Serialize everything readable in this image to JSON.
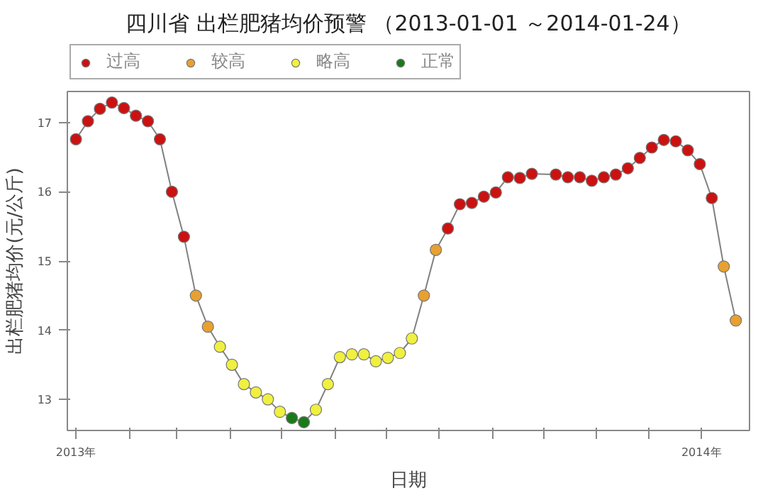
{
  "chart_data": {
    "type": "line",
    "title": "四川省 出栏肥猪均价预警 （2013-01-01 ～2014-01-24）",
    "xlabel": "日期",
    "ylabel": "出栏肥猪均价(元/公斤)",
    "xlim": [
      "2012-12-27",
      "2014-01-29"
    ],
    "ylim": [
      12.55,
      17.45
    ],
    "xticks": [
      {
        "value": "2013-01-01",
        "label": "2013年"
      },
      {
        "value": "2013-02-01",
        "label": null
      },
      {
        "value": "2013-03-01",
        "label": null
      },
      {
        "value": "2013-04-01",
        "label": null
      },
      {
        "value": "2013-05-01",
        "label": null
      },
      {
        "value": "2013-06-01",
        "label": null
      },
      {
        "value": "2013-07-01",
        "label": null
      },
      {
        "value": "2013-08-01",
        "label": null
      },
      {
        "value": "2013-09-01",
        "label": null
      },
      {
        "value": "2013-10-01",
        "label": null
      },
      {
        "value": "2013-11-01",
        "label": null
      },
      {
        "value": "2013-12-01",
        "label": null
      },
      {
        "value": "2014-01-01",
        "label": "2014年"
      }
    ],
    "yticks": [
      13,
      14,
      15,
      16,
      17
    ],
    "grid": false,
    "legend": "top left",
    "marker": "circle",
    "line_style": "solid",
    "series": [
      {
        "color": "#808080",
        "marker": "none",
        "x": [
          "2013-01-01",
          "2013-01-08",
          "2013-01-15",
          "2013-01-22",
          "2013-01-29",
          "2013-02-05",
          "2013-02-12",
          "2013-02-19",
          "2013-02-26",
          "2013-03-05",
          "2013-03-12",
          "2013-03-19",
          "2013-03-26",
          "2013-04-02",
          "2013-04-09",
          "2013-04-16",
          "2013-04-23",
          "2013-04-30",
          "2013-05-07",
          "2013-05-14",
          "2013-05-21",
          "2013-05-28",
          "2013-06-04",
          "2013-06-11",
          "2013-06-18",
          "2013-06-25",
          "2013-07-02",
          "2013-07-09",
          "2013-07-16",
          "2013-07-23",
          "2013-07-30",
          "2013-08-06",
          "2013-08-13",
          "2013-08-20",
          "2013-08-27",
          "2013-09-03",
          "2013-09-10",
          "2013-09-17",
          "2013-09-24",
          "2013-10-08",
          "2013-10-15",
          "2013-10-22",
          "2013-10-29",
          "2013-11-05",
          "2013-11-12",
          "2013-11-19",
          "2013-11-26",
          "2013-12-03",
          "2013-12-10",
          "2013-12-17",
          "2013-12-24",
          "2013-12-31",
          "2014-01-07",
          "2014-01-14",
          "2014-01-21"
        ],
        "values": [
          16.76,
          17.02,
          17.2,
          17.29,
          17.21,
          17.1,
          17.02,
          16.76,
          16.0,
          15.35,
          14.5,
          14.05,
          13.76,
          13.5,
          13.22,
          13.1,
          13.0,
          12.82,
          12.73,
          12.67,
          12.85,
          13.22,
          13.61,
          13.65,
          13.65,
          13.55,
          13.6,
          13.67,
          13.88,
          14.5,
          15.16,
          15.47,
          15.82,
          15.84,
          15.93,
          15.99,
          16.21,
          16.2,
          16.26,
          16.25,
          16.21,
          16.21,
          16.16,
          16.21,
          16.25,
          16.34,
          16.49,
          16.64,
          16.75,
          16.73,
          16.6,
          16.4,
          15.91,
          14.92,
          14.14
        ]
      },
      {
        "type": "scatter",
        "name": "过高",
        "color": "#cc1111",
        "x": [
          "2013-01-01",
          "2013-01-08",
          "2013-01-15",
          "2013-01-22",
          "2013-01-29",
          "2013-02-05",
          "2013-02-12",
          "2013-02-19",
          "2013-02-26",
          "2013-03-05",
          "2013-08-06",
          "2013-08-13",
          "2013-08-20",
          "2013-08-27",
          "2013-09-03",
          "2013-09-10",
          "2013-09-17",
          "2013-09-24",
          "2013-10-08",
          "2013-10-15",
          "2013-10-22",
          "2013-10-29",
          "2013-11-05",
          "2013-11-12",
          "2013-11-19",
          "2013-11-26",
          "2013-12-03",
          "2013-12-10",
          "2013-12-17",
          "2013-12-24",
          "2013-12-31",
          "2014-01-07"
        ],
        "values": [
          16.76,
          17.02,
          17.2,
          17.29,
          17.21,
          17.1,
          17.02,
          16.76,
          16.0,
          15.35,
          15.47,
          15.82,
          15.84,
          15.93,
          15.99,
          16.21,
          16.2,
          16.26,
          16.25,
          16.21,
          16.21,
          16.16,
          16.21,
          16.25,
          16.34,
          16.49,
          16.64,
          16.75,
          16.73,
          16.6,
          16.4,
          15.91
        ]
      },
      {
        "type": "scatter",
        "name": "较高",
        "color": "#e8a030",
        "x": [
          "2013-03-12",
          "2013-03-19",
          "2013-07-23",
          "2013-07-30",
          "2014-01-14",
          "2014-01-21"
        ],
        "values": [
          14.5,
          14.05,
          14.5,
          15.16,
          14.92,
          14.14
        ]
      },
      {
        "type": "scatter",
        "name": "略高",
        "color": "#f0f040",
        "x": [
          "2013-03-26",
          "2013-04-02",
          "2013-04-09",
          "2013-04-16",
          "2013-04-23",
          "2013-04-30",
          "2013-05-21",
          "2013-05-28",
          "2013-06-04",
          "2013-06-11",
          "2013-06-18",
          "2013-06-25",
          "2013-07-02",
          "2013-07-09",
          "2013-07-16"
        ],
        "values": [
          13.76,
          13.5,
          13.22,
          13.1,
          13.0,
          12.82,
          12.85,
          13.22,
          13.61,
          13.65,
          13.65,
          13.55,
          13.6,
          13.67,
          13.88
        ]
      },
      {
        "type": "scatter",
        "name": "正常",
        "color": "#1a7a1a",
        "x": [
          "2013-05-07",
          "2013-05-14"
        ],
        "values": [
          12.73,
          12.67
        ]
      }
    ]
  }
}
